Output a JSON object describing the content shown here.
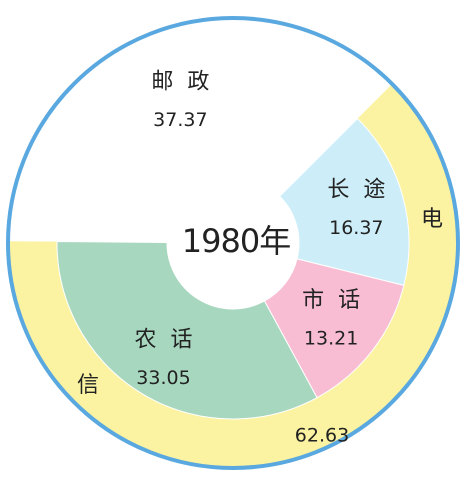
{
  "chart_data": {
    "type": "sunburst",
    "center_label": "1980年",
    "outer": [
      {
        "label": [
          "电",
          "信"
        ],
        "value": 62.63,
        "color": "#fbf3a2"
      }
    ],
    "inner": [
      {
        "name": "长途",
        "value": 16.37,
        "color": "#cdeef8"
      },
      {
        "name": "市话",
        "value": 13.21,
        "color": "#f8bdd3"
      },
      {
        "name": "农话",
        "value": 33.05,
        "color": "#a8d7bf"
      }
    ],
    "other": {
      "name": "邮政",
      "value": 37.37,
      "color": "#ffffff"
    },
    "border_color": "#5aa8e0"
  }
}
